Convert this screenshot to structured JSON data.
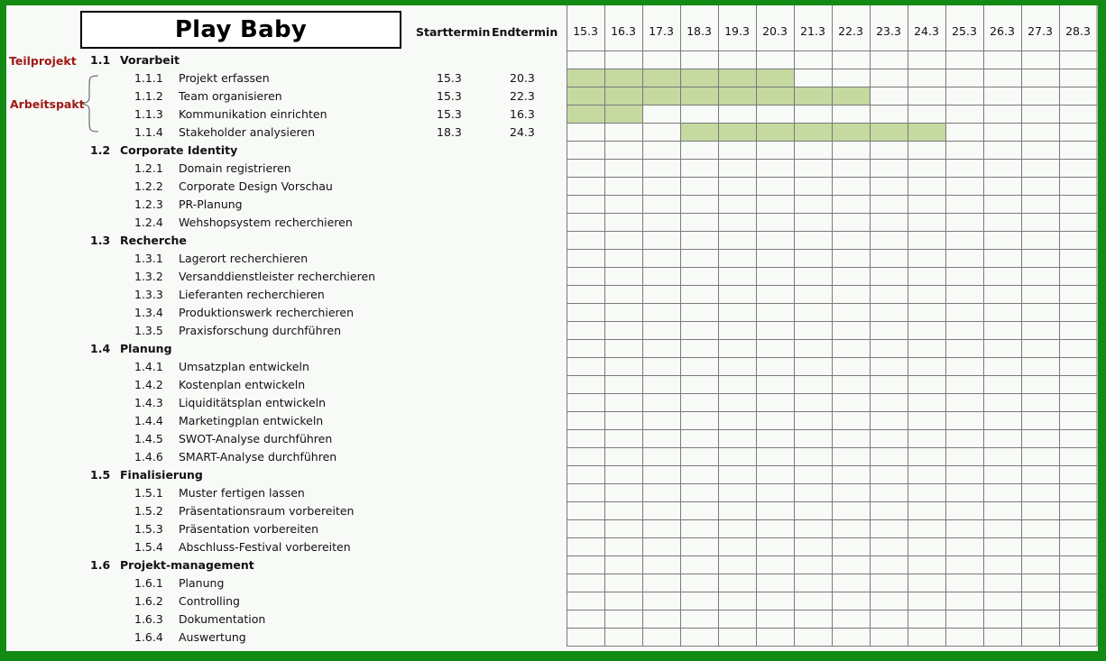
{
  "title": "Play Baby",
  "headers": {
    "start": "Starttermin",
    "end": "Endtermin"
  },
  "side_labels": {
    "teilprojekt": "Teilprojekt",
    "arbeitspakt": "Arbeitspakt"
  },
  "dates": [
    "15.3",
    "16.3",
    "17.3",
    "18.3",
    "19.3",
    "20.3",
    "21.3",
    "22.3",
    "23.3",
    "24.3",
    "25.3",
    "26.3",
    "27.3",
    "28.3"
  ],
  "rows": [
    {
      "type": "group",
      "num": "1.1",
      "name": "Vorarbeit"
    },
    {
      "type": "task",
      "num": "1.1.1",
      "name": "Projekt erfassen",
      "start": "15.3",
      "end": "20.3"
    },
    {
      "type": "task",
      "num": "1.1.2",
      "name": "Team organisieren",
      "start": "15.3",
      "end": "22.3"
    },
    {
      "type": "task",
      "num": "1.1.3",
      "name": "Kommunikation einrichten",
      "start": "15.3",
      "end": "16.3"
    },
    {
      "type": "task",
      "num": "1.1.4",
      "name": "Stakeholder analysieren",
      "start": "18.3",
      "end": "24.3"
    },
    {
      "type": "group",
      "num": "1.2",
      "name": "Corporate Identity"
    },
    {
      "type": "task",
      "num": "1.2.1",
      "name": "Domain registrieren"
    },
    {
      "type": "task",
      "num": "1.2.2",
      "name": "Corporate Design Vorschau"
    },
    {
      "type": "task",
      "num": "1.2.3",
      "name": "PR-Planung"
    },
    {
      "type": "task",
      "num": "1.2.4",
      "name": "Wehshopsystem recherchieren"
    },
    {
      "type": "group",
      "num": "1.3",
      "name": "Recherche"
    },
    {
      "type": "task",
      "num": "1.3.1",
      "name": "Lagerort recherchieren"
    },
    {
      "type": "task",
      "num": "1.3.2",
      "name": "Versanddienstleister recherchieren"
    },
    {
      "type": "task",
      "num": "1.3.3",
      "name": "Lieferanten recherchieren"
    },
    {
      "type": "task",
      "num": "1.3.4",
      "name": "Produktionswerk recherchieren"
    },
    {
      "type": "task",
      "num": "1.3.5",
      "name": "Praxisforschung durchführen"
    },
    {
      "type": "group",
      "num": "1.4",
      "name": "Planung"
    },
    {
      "type": "task",
      "num": "1.4.1",
      "name": "Umsatzplan entwickeln"
    },
    {
      "type": "task",
      "num": "1.4.2",
      "name": "Kostenplan entwickeln"
    },
    {
      "type": "task",
      "num": "1.4.3",
      "name": "Liquiditätsplan entwickeln"
    },
    {
      "type": "task",
      "num": "1.4.4",
      "name": "Marketingplan entwickeln"
    },
    {
      "type": "task",
      "num": "1.4.5",
      "name": "SWOT-Analyse durchführen"
    },
    {
      "type": "task",
      "num": "1.4.6",
      "name": "SMART-Analyse durchführen"
    },
    {
      "type": "group",
      "num": "1.5",
      "name": "Finalisierung"
    },
    {
      "type": "task",
      "num": "1.5.1",
      "name": "Muster fertigen lassen"
    },
    {
      "type": "task",
      "num": "1.5.2",
      "name": "Präsentationsraum vorbereiten"
    },
    {
      "type": "task",
      "num": "1.5.3",
      "name": "Präsentation vorbereiten"
    },
    {
      "type": "task",
      "num": "1.5.4",
      "name": "Abschluss-Festival vorbereiten"
    },
    {
      "type": "group",
      "num": "1.6",
      "name": "Projekt-management"
    },
    {
      "type": "task",
      "num": "1.6.1",
      "name": "Planung"
    },
    {
      "type": "task",
      "num": "1.6.2",
      "name": "Controlling"
    },
    {
      "type": "task",
      "num": "1.6.3",
      "name": "Dokumentation"
    },
    {
      "type": "task",
      "num": "1.6.4",
      "name": "Auswertung"
    }
  ],
  "colors": {
    "frame": "#138a13",
    "bar_fill": "#c5d9a1",
    "grid": "#7a7a7a"
  }
}
